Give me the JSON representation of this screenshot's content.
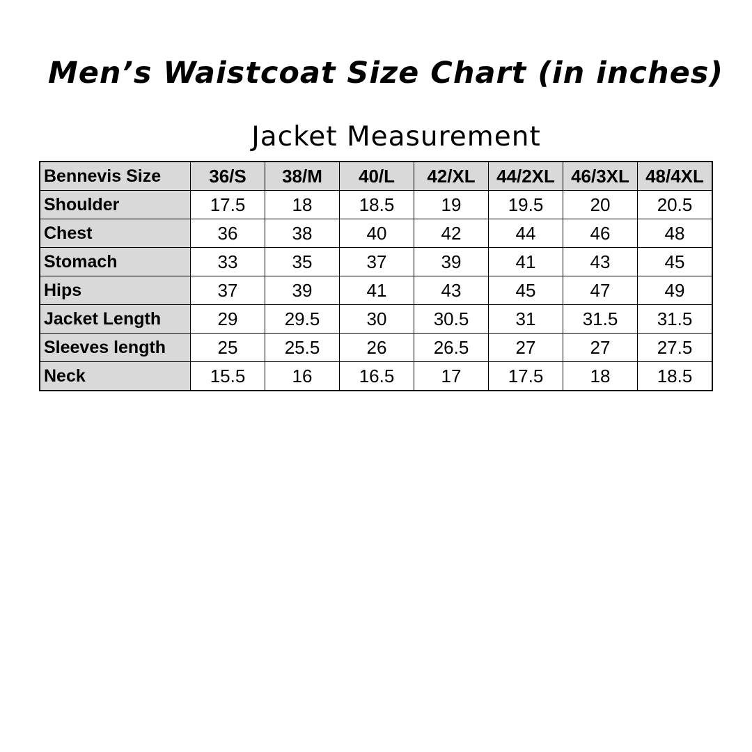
{
  "title": "Men’s Waistcoat Size Chart (in inches)",
  "subtitle": "Jacket Measurement",
  "colors": {
    "header_bg": "#d9d9d9",
    "border": "#000000"
  },
  "table": {
    "header_label": "Bennevis Size",
    "sizes": [
      "36/S",
      "38/M",
      "40/L",
      "42/XL",
      "44/2XL",
      "46/3XL",
      "48/4XL"
    ],
    "rows": [
      {
        "label": "Shoulder",
        "values": [
          "17.5",
          "18",
          "18.5",
          "19",
          "19.5",
          "20",
          "20.5"
        ]
      },
      {
        "label": "Chest",
        "values": [
          "36",
          "38",
          "40",
          "42",
          "44",
          "46",
          "48"
        ]
      },
      {
        "label": "Stomach",
        "values": [
          "33",
          "35",
          "37",
          "39",
          "41",
          "43",
          "45"
        ]
      },
      {
        "label": "Hips",
        "values": [
          "37",
          "39",
          "41",
          "43",
          "45",
          "47",
          "49"
        ]
      },
      {
        "label": "Jacket Length",
        "values": [
          "29",
          "29.5",
          "30",
          "30.5",
          "31",
          "31.5",
          "31.5"
        ]
      },
      {
        "label": "Sleeves length",
        "values": [
          "25",
          "25.5",
          "26",
          "26.5",
          "27",
          "27",
          "27.5"
        ]
      },
      {
        "label": "Neck",
        "values": [
          "15.5",
          "16",
          "16.5",
          "17",
          "17.5",
          "18",
          "18.5"
        ]
      }
    ]
  }
}
